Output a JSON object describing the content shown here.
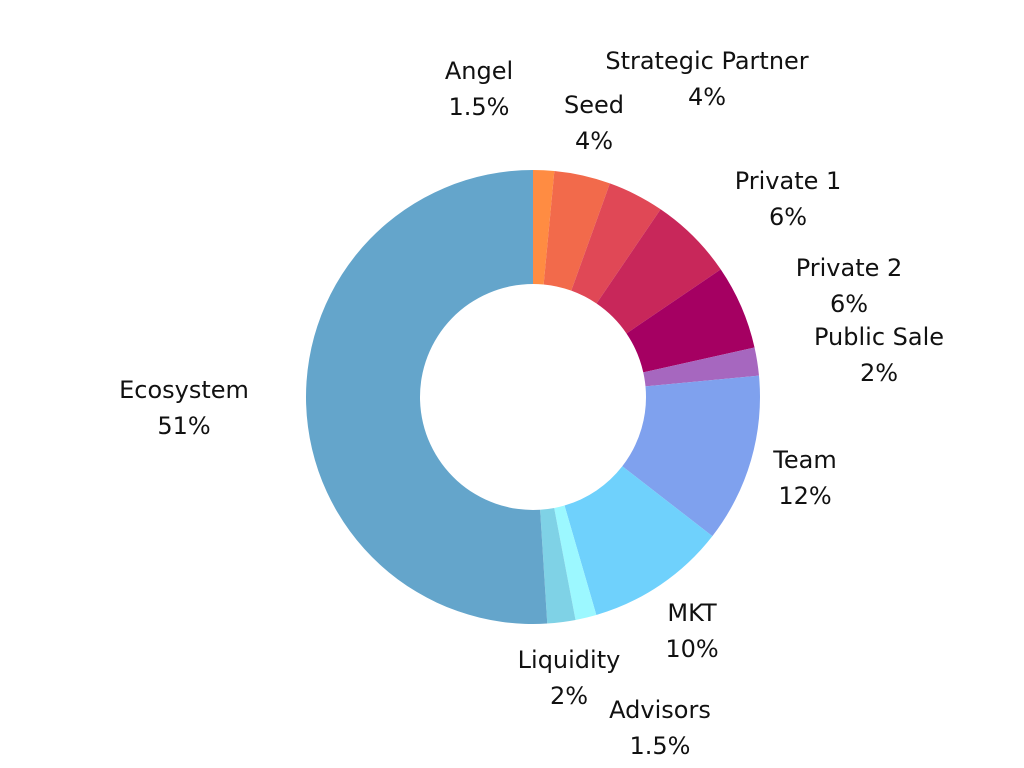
{
  "chart_data": {
    "type": "pie",
    "variant": "donut",
    "title": "",
    "legend": "none",
    "start_angle_deg": 0,
    "direction": "clockwise",
    "slices": [
      {
        "name": "Angel",
        "value": 1.5,
        "label": "1.5%",
        "color": "#FF8C42"
      },
      {
        "name": "Seed",
        "value": 4,
        "label": "4%",
        "color": "#F26A4B"
      },
      {
        "name": "Strategic Partner",
        "value": 4,
        "label": "4%",
        "color": "#E04856"
      },
      {
        "name": "Private 1",
        "value": 6,
        "label": "6%",
        "color": "#C8275A"
      },
      {
        "name": "Private 2",
        "value": 6,
        "label": "6%",
        "color": "#A50062"
      },
      {
        "name": "Public Sale",
        "value": 2,
        "label": "2%",
        "color": "#A667BF"
      },
      {
        "name": "Team",
        "value": 12,
        "label": "12%",
        "color": "#7FA1EE"
      },
      {
        "name": "MKT",
        "value": 10,
        "label": "10%",
        "color": "#6FD1FC"
      },
      {
        "name": "Advisors",
        "value": 1.5,
        "label": "1.5%",
        "color": "#9CF8FF"
      },
      {
        "name": "Liquidity",
        "value": 2,
        "label": "2%",
        "color": "#7FD2E6"
      },
      {
        "name": "Ecosystem",
        "value": 51,
        "label": "51%",
        "color": "#64A5CB"
      }
    ]
  }
}
